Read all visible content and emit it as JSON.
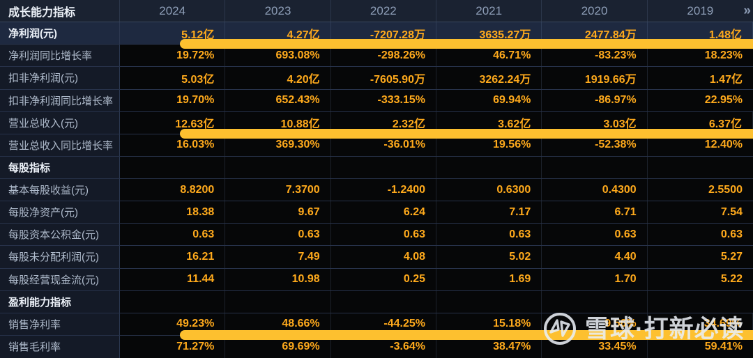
{
  "table": {
    "header": {
      "label": "成长能力指标",
      "years": [
        "2024",
        "2023",
        "2022",
        "2021",
        "2020",
        "2019"
      ],
      "more_icon": "»"
    },
    "rows": [
      {
        "label": "净利润(元)",
        "type": "highlight",
        "underline": true,
        "values": [
          "5.12亿",
          "4.27亿",
          "-7207.28万",
          "3635.27万",
          "2477.84万",
          "1.48亿"
        ]
      },
      {
        "label": "净利润同比增长率",
        "values": [
          "19.72%",
          "693.08%",
          "-298.26%",
          "46.71%",
          "-83.23%",
          "18.23%"
        ]
      },
      {
        "label": "扣非净利润(元)",
        "values": [
          "5.03亿",
          "4.20亿",
          "-7605.90万",
          "3262.24万",
          "1919.66万",
          "1.47亿"
        ]
      },
      {
        "label": "扣非净利润同比增长率",
        "values": [
          "19.70%",
          "652.43%",
          "-333.15%",
          "69.94%",
          "-86.97%",
          "22.95%"
        ]
      },
      {
        "label": "营业总收入(元)",
        "underline": true,
        "values": [
          "12.63亿",
          "10.88亿",
          "2.32亿",
          "3.62亿",
          "3.03亿",
          "6.37亿"
        ]
      },
      {
        "label": "营业总收入同比增长率",
        "values": [
          "16.03%",
          "369.30%",
          "-36.01%",
          "19.56%",
          "-52.38%",
          "12.40%"
        ]
      },
      {
        "label": "每股指标",
        "type": "section",
        "values": [
          "",
          "",
          "",
          "",
          "",
          ""
        ]
      },
      {
        "label": "基本每股收益(元)",
        "values": [
          "8.8200",
          "7.3700",
          "-1.2400",
          "0.6300",
          "0.4300",
          "2.5500"
        ]
      },
      {
        "label": "每股净资产(元)",
        "values": [
          "18.38",
          "9.67",
          "6.24",
          "7.17",
          "6.71",
          "7.54"
        ]
      },
      {
        "label": "每股资本公积金(元)",
        "values": [
          "0.63",
          "0.63",
          "0.63",
          "0.63",
          "0.63",
          "0.63"
        ]
      },
      {
        "label": "每股未分配利润(元)",
        "values": [
          "16.21",
          "7.49",
          "4.08",
          "5.02",
          "4.40",
          "5.27"
        ]
      },
      {
        "label": "每股经营现金流(元)",
        "values": [
          "11.44",
          "10.98",
          "0.25",
          "1.69",
          "1.70",
          "5.22"
        ]
      },
      {
        "label": "盈利能力指标",
        "type": "section",
        "values": [
          "",
          "",
          "",
          "",
          "",
          ""
        ]
      },
      {
        "label": "销售净利率",
        "underline": true,
        "values": [
          "49.23%",
          "48.66%",
          "-44.25%",
          "15.18%",
          "9.56%",
          "34.69%"
        ]
      },
      {
        "label": "销售毛利率",
        "values": [
          "71.27%",
          "69.69%",
          "-3.64%",
          "38.47%",
          "33.45%",
          "59.41%"
        ]
      }
    ]
  },
  "watermark": {
    "text": "雪球·打新必读",
    "logo": "xueqiu-logo"
  },
  "colors": {
    "bg": "#060708",
    "label_col_bg": "#141a27",
    "header_bg": "#1a2231",
    "selected_row_bg": "#1e2940",
    "value_color": "#ffaa1c",
    "label_color": "#b0bccd",
    "header_text": "#8d9db6",
    "bright_text": "#ecf1f8",
    "bar_color": "#fdc02f"
  }
}
